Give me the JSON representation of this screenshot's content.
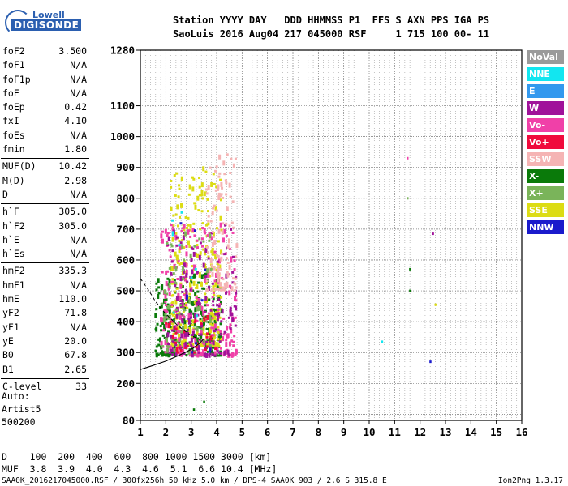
{
  "logo": {
    "line1": "Lowell",
    "line2": "DIGISONDE"
  },
  "header": {
    "line1": "Station YYYY DAY   DDD HHMMSS P1  FFS S AXN PPS IGA PS",
    "line2": "SaoLuis 2016 Aug04 217 045000 RSF     1 715 100 00- 11"
  },
  "params": [
    [
      {
        "label": "foF2",
        "value": "3.500"
      },
      {
        "label": "foF1",
        "value": "N/A"
      },
      {
        "label": "foF1p",
        "value": "N/A"
      },
      {
        "label": "foE",
        "value": "N/A"
      },
      {
        "label": "foEp",
        "value": "0.42"
      },
      {
        "label": "fxI",
        "value": "4.10"
      },
      {
        "label": "foEs",
        "value": "N/A"
      },
      {
        "label": "fmin",
        "value": "1.80"
      }
    ],
    [
      {
        "label": "MUF(D)",
        "value": "10.42"
      },
      {
        "label": "M(D)",
        "value": "2.98"
      },
      {
        "label": "D",
        "value": "N/A"
      }
    ],
    [
      {
        "label": "h`F",
        "value": "305.0"
      },
      {
        "label": "h`F2",
        "value": "305.0"
      },
      {
        "label": "h`E",
        "value": "N/A"
      },
      {
        "label": "h`Es",
        "value": "N/A"
      }
    ],
    [
      {
        "label": "hmF2",
        "value": "335.3"
      },
      {
        "label": "hmF1",
        "value": "N/A"
      },
      {
        "label": "hmE",
        "value": "110.0"
      },
      {
        "label": "yF2",
        "value": "71.8"
      },
      {
        "label": "yF1",
        "value": "N/A"
      },
      {
        "label": "yE",
        "value": "20.0"
      },
      {
        "label": "B0",
        "value": "67.8"
      },
      {
        "label": "B1",
        "value": "2.65"
      }
    ],
    [
      {
        "label": "C-level",
        "value": "33"
      }
    ]
  ],
  "auto": {
    "line1": "Auto:",
    "line2": "Artist5",
    "line3": "500200"
  },
  "legend": [
    {
      "label": "NoVal",
      "color": "#9a9a9a"
    },
    {
      "label": "NNE",
      "color": "#12e6f0"
    },
    {
      "label": "E",
      "color": "#3399ee"
    },
    {
      "label": "W",
      "color": "#a0129a"
    },
    {
      "label": "Vo-",
      "color": "#f040a8"
    },
    {
      "label": "Vo+",
      "color": "#f00a3c"
    },
    {
      "label": "SSW",
      "color": "#f5b4b4"
    },
    {
      "label": "X-",
      "color": "#0a7a0a"
    },
    {
      "label": "X+",
      "color": "#7ab45a"
    },
    {
      "label": "SSE",
      "color": "#dcdc14"
    },
    {
      "label": "NNW",
      "color": "#1a1acc"
    }
  ],
  "muf_table": {
    "line1": "D    100  200  400  600  800 1000 1500 3000 [km]",
    "line2": "MUF  3.8  3.9  4.0  4.3  4.6  5.1  6.6 10.4 [MHz]"
  },
  "footer": "SAA0K_2016217045000.RSF / 300fx256h 50 kHz 5.0 km / DPS-4 SAA0K 903 / 2.6 S 315.8 E",
  "version": "Ion2Png 1.3.17",
  "chart_data": {
    "type": "scatter",
    "title": "",
    "xlabel": "",
    "ylabel": "",
    "xlim": [
      1,
      16
    ],
    "ylim": [
      80,
      1280
    ],
    "x_ticks": [
      1,
      2,
      3,
      4,
      5,
      6,
      7,
      8,
      9,
      10,
      11,
      12,
      13,
      14,
      15,
      16
    ],
    "y_ticks": [
      80,
      200,
      300,
      400,
      500,
      600,
      700,
      800,
      900,
      1000,
      1100,
      1280
    ],
    "y_grid": [
      100,
      200,
      300,
      400,
      500,
      600,
      700,
      800,
      900,
      1000,
      1100,
      1200
    ],
    "clusters": [
      {
        "name": "X-",
        "color": "#0a7a0a",
        "x_range": [
          1.6,
          4.2
        ],
        "y_range": [
          290,
          560
        ],
        "count": 260
      },
      {
        "name": "SSE",
        "color": "#dcdc14",
        "x_range": [
          2.2,
          4.2
        ],
        "y_range": [
          320,
          900
        ],
        "count": 300
      },
      {
        "name": "Vo-",
        "color": "#f040a8",
        "x_range": [
          1.8,
          4.8
        ],
        "y_range": [
          290,
          720
        ],
        "count": 260
      },
      {
        "name": "W",
        "color": "#a0129a",
        "x_range": [
          2.0,
          4.8
        ],
        "y_range": [
          290,
          720
        ],
        "count": 160
      },
      {
        "name": "SSW",
        "color": "#f5b4b4",
        "x_range": [
          3.6,
          4.8
        ],
        "y_range": [
          500,
          950
        ],
        "count": 120
      },
      {
        "name": "X+",
        "color": "#7ab45a",
        "x_range": [
          1.8,
          3.8
        ],
        "y_range": [
          300,
          700
        ],
        "count": 60
      },
      {
        "name": "Vo+",
        "color": "#f00a3c",
        "x_range": [
          2.0,
          4.0
        ],
        "y_range": [
          300,
          420
        ],
        "count": 30
      },
      {
        "name": "NNE",
        "color": "#12e6f0",
        "x_range": [
          2.0,
          3.5
        ],
        "y_range": [
          300,
          800
        ],
        "count": 8
      },
      {
        "name": "NNW",
        "color": "#1a1acc",
        "x_range": [
          2.5,
          4.0
        ],
        "y_range": [
          300,
          950
        ],
        "count": 8
      }
    ],
    "isolated_points": [
      {
        "x": 11.5,
        "y": 930,
        "color": "#f040a8"
      },
      {
        "x": 11.5,
        "y": 800,
        "color": "#7ab45a"
      },
      {
        "x": 12.5,
        "y": 685,
        "color": "#a0129a"
      },
      {
        "x": 11.6,
        "y": 570,
        "color": "#0a7a0a"
      },
      {
        "x": 11.6,
        "y": 500,
        "color": "#0a7a0a"
      },
      {
        "x": 12.6,
        "y": 455,
        "color": "#dcdc14"
      },
      {
        "x": 10.5,
        "y": 335,
        "color": "#12e6f0"
      },
      {
        "x": 12.4,
        "y": 270,
        "color": "#1a1acc"
      },
      {
        "x": 3.5,
        "y": 140,
        "color": "#0a7a0a"
      },
      {
        "x": 3.1,
        "y": 115,
        "color": "#0a7a0a"
      }
    ],
    "profile_curve": {
      "color": "#000000",
      "points": [
        [
          1,
          245
        ],
        [
          1.5,
          258
        ],
        [
          2,
          272
        ],
        [
          2.5,
          290
        ],
        [
          3,
          310
        ],
        [
          3.3,
          328
        ],
        [
          3.5,
          345
        ]
      ]
    },
    "extraordinary_curve": {
      "color": "#000000",
      "dashed": true,
      "points": [
        [
          1,
          540
        ],
        [
          1.3,
          505
        ],
        [
          1.6,
          465
        ],
        [
          2,
          425
        ],
        [
          2.5,
          385
        ],
        [
          3,
          355
        ],
        [
          3.5,
          335
        ]
      ]
    }
  }
}
